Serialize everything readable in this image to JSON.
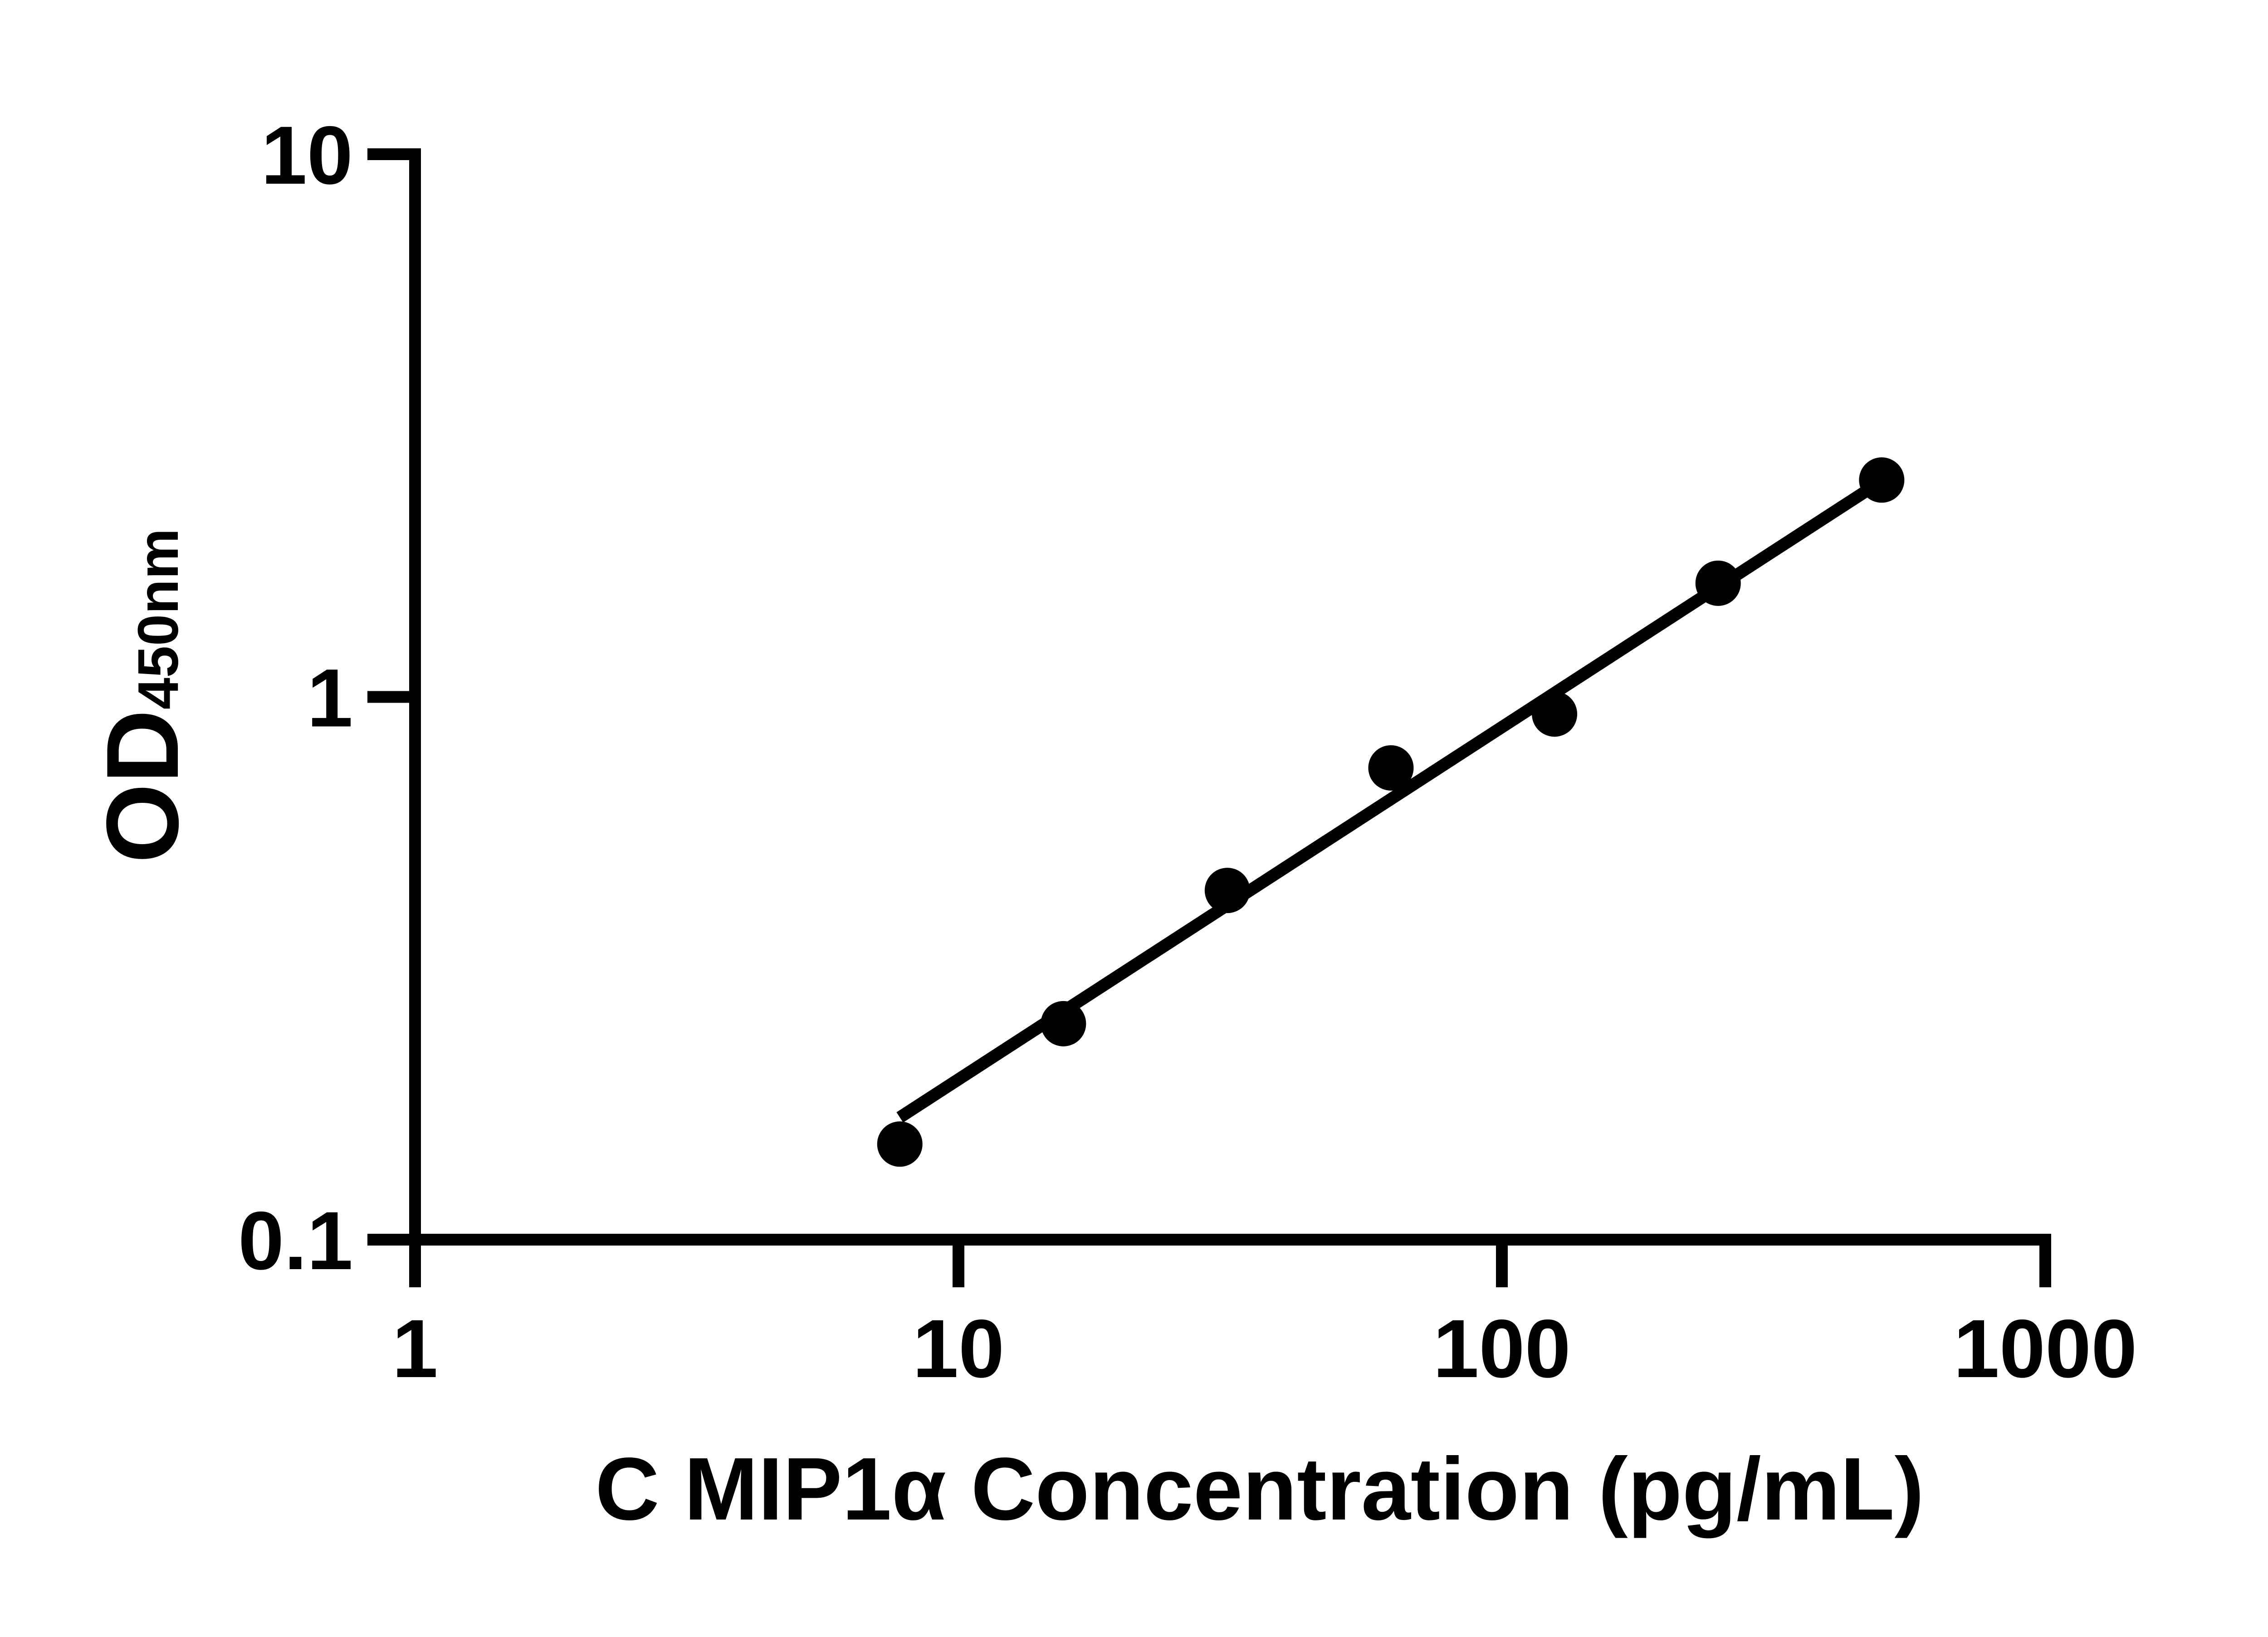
{
  "figure": {
    "background_color": "#ffffff",
    "ink_color": "#000000"
  },
  "chart_data": {
    "type": "scatter",
    "title": "",
    "xlabel": "C MIP1α Concentration (pg/mL)",
    "ylabel": "OD",
    "ylabel_subscript": "450nm",
    "x_scale": "log10",
    "y_scale": "log10",
    "xlim": [
      1,
      1000
    ],
    "ylim": [
      0.1,
      10
    ],
    "grid": false,
    "legend": "none",
    "x_ticks": [
      {
        "value": 1,
        "label": "1"
      },
      {
        "value": 10,
        "label": "10"
      },
      {
        "value": 100,
        "label": "100"
      },
      {
        "value": 1000,
        "label": "1000"
      }
    ],
    "y_ticks": [
      {
        "value": 10,
        "label": "10"
      },
      {
        "value": 1,
        "label": "1"
      },
      {
        "value": 0.1,
        "label": "0.1"
      }
    ],
    "series": [
      {
        "name": "standard-curve-points",
        "marker": "filled-circle",
        "color": "#000000",
        "points": [
          {
            "x": 7.8,
            "y": 0.15
          },
          {
            "x": 15.6,
            "y": 0.25
          },
          {
            "x": 31.25,
            "y": 0.44
          },
          {
            "x": 62.5,
            "y": 0.74
          },
          {
            "x": 125,
            "y": 0.93
          },
          {
            "x": 250,
            "y": 1.62
          },
          {
            "x": 500,
            "y": 2.51
          }
        ]
      }
    ],
    "trend_line": {
      "type": "linear-fit-loglog",
      "x1": 7.8,
      "y1": 0.168,
      "x2": 500,
      "y2": 2.5,
      "color": "#000000"
    }
  }
}
